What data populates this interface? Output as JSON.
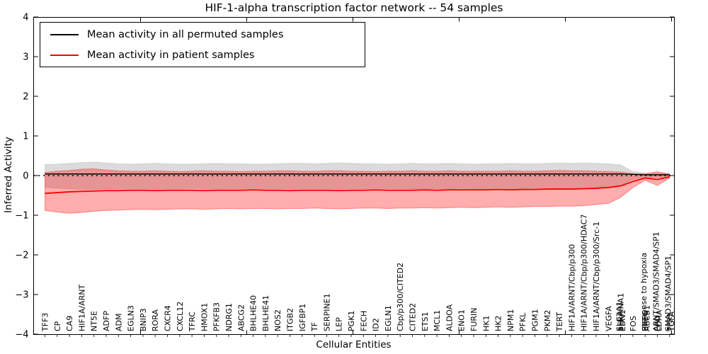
{
  "title": "HIF-1-alpha transcription factor network -- 54 samples",
  "legend": {
    "items": [
      {
        "label": "Mean activity in all permuted samples",
        "color": "#000000"
      },
      {
        "label": "Mean activity in patient samples",
        "color": "#ff0000"
      }
    ]
  },
  "axes": {
    "ylabel": "Inferred Activity",
    "xlabel": "Cellular Entities",
    "yticks": [
      "4",
      "3",
      "2",
      "1",
      "0",
      "−1",
      "−2",
      "−3",
      "−4"
    ],
    "ytick_values": [
      4,
      3,
      2,
      1,
      0,
      -1,
      -2,
      -3,
      -4
    ],
    "ylim": [
      -4,
      4
    ]
  },
  "colors": {
    "permuted_line": "#000000",
    "patient_line": "#ff0000",
    "permuted_band": "rgba(0,0,0,0.14)",
    "patient_band": "rgba(255,0,0,0.32)",
    "zero_line": "#000000",
    "frame": "#000000"
  },
  "chart_data": {
    "type": "line",
    "title": "HIF-1-alpha transcription factor network -- 54 samples",
    "xlabel": "Cellular Entities",
    "ylabel": "Inferred Activity",
    "ylim": [
      -4,
      4
    ],
    "grid": false,
    "legend_position": "upper left",
    "zero_line": true,
    "categories": [
      "TFF3",
      "CP",
      "CA9",
      "HIF1A/ARNT",
      "NT5E",
      "ADFP",
      "ADM",
      "EGLN3",
      "BNIP3",
      "RORA",
      "CXCR4",
      "CXCL12",
      "TFRC",
      "HMOX1",
      "PFKFB3",
      "NDRG1",
      "ABCG2",
      "BHLHE40",
      "BHLHE41",
      "NOS2",
      "ITGB2",
      "IGFBP1",
      "TF",
      "SERPINE1",
      "LEP",
      "PGK1",
      "FECH",
      "ID2",
      "EGLN1",
      "Cbp/p300/CITED2",
      "CITED2",
      "ETS1",
      "MCL1",
      "ALDOA",
      "ENO1",
      "FURIN",
      "HK1",
      "HK2",
      "NPM1",
      "PFKL",
      "PGM1",
      "PKM2",
      "TERT",
      "HIF1A/ARNT/Cbp/p300",
      "HIF1A/ARNT/Cbp/p300/HDAC7",
      "HIF1A/ARNT/Cbp/p300/Src-1",
      "VEGFA",
      [
        "SLC2A1",
        "SERPINA1",
        "EDN1"
      ],
      "FOS",
      [
        "response to hypoxia",
        "EREG",
        "ABCB1"
      ],
      [
        "ARNT/SMAD3/SMAD4/SP1",
        "EPO",
        "LDHA"
      ],
      [
        "SMAD3/SMAD4/SP1",
        "TFF1",
        "TGFA"
      ]
    ],
    "series": [
      {
        "name": "Mean activity in all permuted samples",
        "color": "#000000",
        "values": [
          0.04,
          0.04,
          0.04,
          0.04,
          0.04,
          0.04,
          0.04,
          0.04,
          0.04,
          0.04,
          0.04,
          0.04,
          0.04,
          0.04,
          0.04,
          0.04,
          0.04,
          0.04,
          0.04,
          0.04,
          0.04,
          0.04,
          0.04,
          0.04,
          0.04,
          0.04,
          0.04,
          0.04,
          0.04,
          0.04,
          0.04,
          0.04,
          0.04,
          0.04,
          0.04,
          0.04,
          0.04,
          0.04,
          0.04,
          0.04,
          0.04,
          0.04,
          0.04,
          0.04,
          0.04,
          0.04,
          0.04,
          0.04,
          0.03,
          0.02,
          0.02,
          0.02
        ]
      },
      {
        "name": "Mean activity in patient samples",
        "color": "#ff0000",
        "values": [
          -0.45,
          -0.43,
          -0.41,
          -0.4,
          -0.39,
          -0.38,
          -0.38,
          -0.37,
          -0.37,
          -0.38,
          -0.37,
          -0.37,
          -0.37,
          -0.38,
          -0.37,
          -0.37,
          -0.37,
          -0.36,
          -0.37,
          -0.37,
          -0.38,
          -0.37,
          -0.37,
          -0.37,
          -0.38,
          -0.37,
          -0.37,
          -0.36,
          -0.37,
          -0.37,
          -0.37,
          -0.36,
          -0.37,
          -0.36,
          -0.36,
          -0.36,
          -0.36,
          -0.35,
          -0.36,
          -0.35,
          -0.35,
          -0.34,
          -0.34,
          -0.34,
          -0.33,
          -0.32,
          -0.3,
          -0.26,
          -0.15,
          -0.06,
          -0.1,
          -0.03
        ]
      }
    ],
    "bands": [
      {
        "name": "permuted samples range",
        "color": "rgba(0,0,0,0.14)",
        "edge": "rgba(0,0,0,0.10)",
        "top": [
          0.28,
          0.29,
          0.31,
          0.33,
          0.34,
          0.32,
          0.3,
          0.29,
          0.3,
          0.31,
          0.3,
          0.29,
          0.29,
          0.3,
          0.31,
          0.3,
          0.3,
          0.29,
          0.29,
          0.3,
          0.31,
          0.31,
          0.3,
          0.31,
          0.32,
          0.31,
          0.3,
          0.3,
          0.29,
          0.3,
          0.31,
          0.3,
          0.3,
          0.31,
          0.3,
          0.29,
          0.3,
          0.3,
          0.31,
          0.3,
          0.3,
          0.31,
          0.32,
          0.31,
          0.32,
          0.31,
          0.3,
          0.27,
          0.1,
          0.07,
          0.06,
          0.07
        ],
        "bottom": [
          -0.3,
          -0.32,
          -0.34,
          -0.35,
          -0.35,
          -0.34,
          -0.33,
          -0.33,
          -0.33,
          -0.34,
          -0.33,
          -0.33,
          -0.32,
          -0.33,
          -0.34,
          -0.33,
          -0.33,
          -0.32,
          -0.33,
          -0.33,
          -0.34,
          -0.33,
          -0.33,
          -0.33,
          -0.34,
          -0.33,
          -0.33,
          -0.32,
          -0.33,
          -0.33,
          -0.34,
          -0.33,
          -0.33,
          -0.33,
          -0.32,
          -0.33,
          -0.33,
          -0.32,
          -0.33,
          -0.33,
          -0.32,
          -0.33,
          -0.33,
          -0.32,
          -0.32,
          -0.31,
          -0.3,
          -0.26,
          -0.09,
          -0.06,
          -0.05,
          -0.06
        ]
      },
      {
        "name": "patient samples range",
        "color": "rgba(255,0,0,0.32)",
        "edge": "rgba(255,60,60,0.55)",
        "top": [
          0.08,
          0.11,
          0.13,
          0.16,
          0.17,
          0.14,
          0.12,
          0.11,
          0.11,
          0.12,
          0.11,
          0.1,
          0.11,
          0.12,
          0.11,
          0.11,
          0.1,
          0.11,
          0.11,
          0.12,
          0.12,
          0.11,
          0.11,
          0.12,
          0.12,
          0.11,
          0.11,
          0.1,
          0.11,
          0.11,
          0.12,
          0.11,
          0.11,
          0.12,
          0.11,
          0.11,
          0.11,
          0.11,
          0.12,
          0.11,
          0.11,
          0.12,
          0.13,
          0.12,
          0.12,
          0.11,
          0.1,
          0.09,
          0.05,
          0.04,
          0.1,
          0.03
        ],
        "bottom": [
          -0.88,
          -0.92,
          -0.95,
          -0.93,
          -0.9,
          -0.88,
          -0.87,
          -0.86,
          -0.85,
          -0.86,
          -0.85,
          -0.84,
          -0.84,
          -0.85,
          -0.84,
          -0.83,
          -0.84,
          -0.83,
          -0.83,
          -0.84,
          -0.83,
          -0.83,
          -0.82,
          -0.83,
          -0.84,
          -0.83,
          -0.82,
          -0.82,
          -0.83,
          -0.82,
          -0.82,
          -0.81,
          -0.82,
          -0.81,
          -0.8,
          -0.81,
          -0.8,
          -0.79,
          -0.8,
          -0.79,
          -0.78,
          -0.78,
          -0.77,
          -0.77,
          -0.76,
          -0.73,
          -0.7,
          -0.55,
          -0.3,
          -0.12,
          -0.25,
          -0.06
        ]
      }
    ]
  }
}
